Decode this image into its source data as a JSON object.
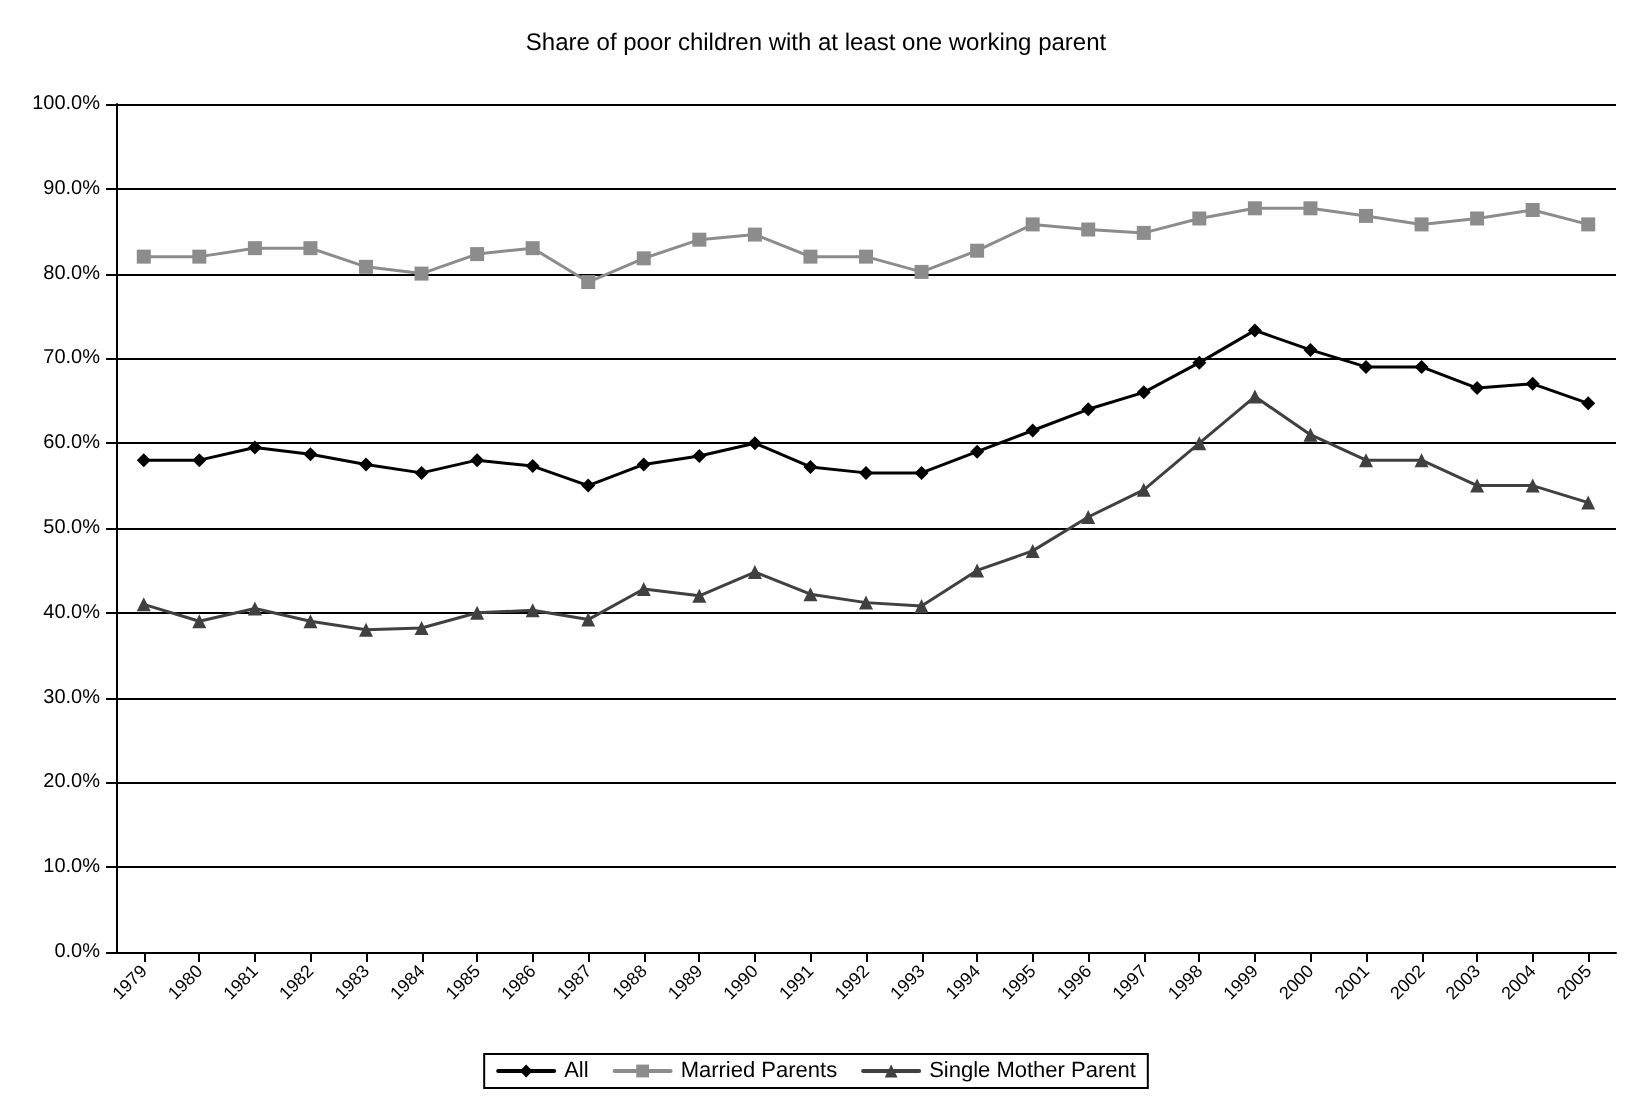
{
  "chart_data": {
    "type": "line",
    "title": "Share of poor children with at least one working parent",
    "categories": [
      "1979",
      "1980",
      "1981",
      "1982",
      "1983",
      "1984",
      "1985",
      "1986",
      "1987",
      "1988",
      "1989",
      "1990",
      "1991",
      "1992",
      "1993",
      "1994",
      "1995",
      "1996",
      "1997",
      "1998",
      "1999",
      "2000",
      "2001",
      "2002",
      "2003",
      "2004",
      "2005"
    ],
    "series": [
      {
        "name": "All",
        "color": "#000000",
        "marker": "diamond",
        "values": [
          58,
          58,
          59.5,
          58.7,
          57.5,
          56.5,
          58,
          57.3,
          55,
          57.5,
          58.5,
          60,
          57.2,
          56.5,
          56.5,
          59,
          61.5,
          64,
          66,
          69.5,
          73.3,
          71,
          69,
          69,
          66.5,
          67,
          64.7
        ]
      },
      {
        "name": "Married Parents",
        "color": "#8c8c8c",
        "marker": "square",
        "values": [
          82,
          82,
          83,
          83,
          80.8,
          80,
          82.3,
          83,
          79,
          81.8,
          84,
          84.6,
          82,
          82,
          80.2,
          82.7,
          85.8,
          85.2,
          84.8,
          86.5,
          87.7,
          87.7,
          86.8,
          85.8,
          86.5,
          87.5,
          85.8
        ]
      },
      {
        "name": "Single Mother Parent",
        "color": "#404040",
        "marker": "triangle",
        "values": [
          41,
          39,
          40.5,
          39,
          38,
          38.2,
          40,
          40.3,
          39.2,
          42.8,
          42,
          44.8,
          42.2,
          41.2,
          40.8,
          45,
          47.3,
          51.3,
          54.5,
          60,
          65.5,
          61,
          58,
          58,
          55,
          55,
          53
        ]
      }
    ],
    "ylim": [
      0,
      100
    ],
    "yticks": [
      {
        "value": 0,
        "label": "0.0%"
      },
      {
        "value": 10,
        "label": "10.0%"
      },
      {
        "value": 20,
        "label": "20.0%"
      },
      {
        "value": 30,
        "label": "30.0%"
      },
      {
        "value": 40,
        "label": "40.0%"
      },
      {
        "value": 50,
        "label": "50.0%"
      },
      {
        "value": 60,
        "label": "60.0%"
      },
      {
        "value": 70,
        "label": "70.0%"
      },
      {
        "value": 80,
        "label": "80.0%"
      },
      {
        "value": 90,
        "label": "90.0%"
      },
      {
        "value": 100,
        "label": "100.0%"
      }
    ],
    "grid": "y",
    "legend": "bottom",
    "line_style": "solid"
  }
}
